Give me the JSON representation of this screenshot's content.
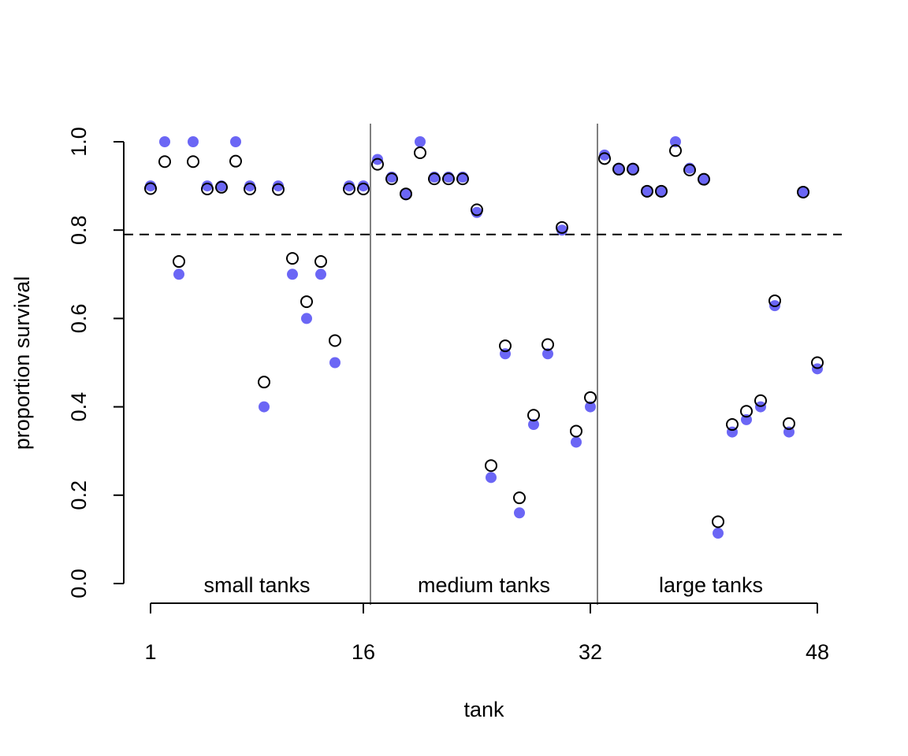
{
  "chart_data": {
    "type": "scatter",
    "xlabel": "tank",
    "ylabel": "proportion survival",
    "xlim": [
      0,
      51
    ],
    "ylim": [
      0,
      1
    ],
    "x_ticks": [
      {
        "value": 1,
        "label": "1"
      },
      {
        "value": 16,
        "label": "16"
      },
      {
        "value": 32,
        "label": "32"
      },
      {
        "value": 48,
        "label": "48"
      }
    ],
    "y_ticks": [
      {
        "value": 0.0,
        "label": "0.0"
      },
      {
        "value": 0.2,
        "label": "0.2"
      },
      {
        "value": 0.4,
        "label": "0.4"
      },
      {
        "value": 0.6,
        "label": "0.6"
      },
      {
        "value": 0.8,
        "label": "0.8"
      },
      {
        "value": 1.0,
        "label": "1.0"
      }
    ],
    "reference_line": {
      "y": 0.79,
      "style": "dashed"
    },
    "dividers": [
      16.5,
      32.5
    ],
    "group_labels": [
      {
        "text": "small tanks",
        "x": 8.5,
        "y": 0.0
      },
      {
        "text": "medium tanks",
        "x": 24.5,
        "y": 0.0
      },
      {
        "text": "large tanks",
        "x": 40.5,
        "y": 0.0
      }
    ],
    "grid": false,
    "legend": "none",
    "series": [
      {
        "style": "filled-point",
        "color": "#6b66f5",
        "x": [
          1,
          2,
          3,
          4,
          5,
          6,
          7,
          8,
          9,
          10,
          11,
          12,
          13,
          14,
          15,
          16,
          17,
          18,
          19,
          20,
          21,
          22,
          23,
          24,
          25,
          26,
          27,
          28,
          29,
          30,
          31,
          32,
          33,
          34,
          35,
          36,
          37,
          38,
          39,
          40,
          41,
          42,
          43,
          44,
          45,
          46,
          47,
          48
        ],
        "values": [
          0.9,
          1.0,
          0.7,
          1.0,
          0.9,
          0.9,
          1.0,
          0.9,
          0.4,
          0.9,
          0.7,
          0.6,
          0.7,
          0.5,
          0.9,
          0.9,
          0.96,
          0.92,
          0.88,
          1.0,
          0.92,
          0.92,
          0.92,
          0.84,
          0.24,
          0.52,
          0.16,
          0.36,
          0.52,
          0.8,
          0.32,
          0.4,
          0.97,
          0.94,
          0.94,
          0.886,
          0.886,
          1.0,
          0.94,
          0.914,
          0.114,
          0.343,
          0.371,
          0.4,
          0.629,
          0.343,
          0.886,
          0.486
        ]
      },
      {
        "style": "open-point",
        "color": "#000000",
        "x": [
          1,
          2,
          3,
          4,
          5,
          6,
          7,
          8,
          9,
          10,
          11,
          12,
          13,
          14,
          15,
          16,
          17,
          18,
          19,
          20,
          21,
          22,
          23,
          24,
          25,
          26,
          27,
          28,
          29,
          30,
          31,
          32,
          33,
          34,
          35,
          36,
          37,
          38,
          39,
          40,
          41,
          42,
          43,
          44,
          45,
          46,
          47,
          48
        ],
        "values": [
          0.894,
          0.955,
          0.729,
          0.955,
          0.893,
          0.897,
          0.956,
          0.893,
          0.456,
          0.892,
          0.736,
          0.638,
          0.729,
          0.55,
          0.893,
          0.893,
          0.949,
          0.916,
          0.882,
          0.975,
          0.916,
          0.916,
          0.916,
          0.846,
          0.267,
          0.538,
          0.194,
          0.381,
          0.541,
          0.806,
          0.345,
          0.421,
          0.962,
          0.938,
          0.938,
          0.888,
          0.888,
          0.98,
          0.936,
          0.915,
          0.14,
          0.36,
          0.39,
          0.414,
          0.64,
          0.362,
          0.886,
          0.5
        ]
      }
    ]
  }
}
